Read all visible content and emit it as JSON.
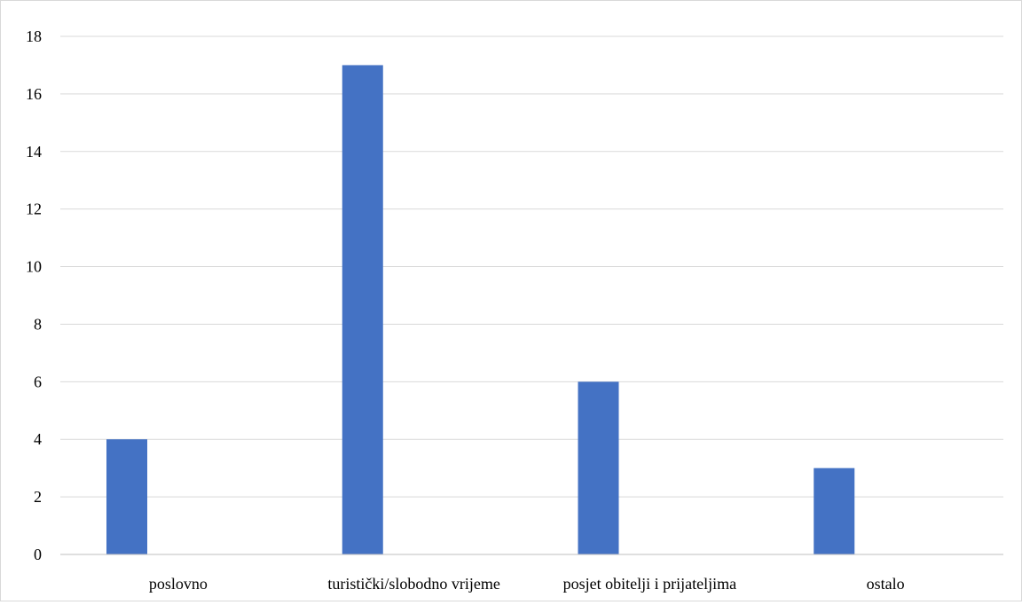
{
  "chart_data": {
    "type": "bar",
    "title": "",
    "xlabel": "",
    "ylabel": "",
    "categories": [
      "poslovno",
      "turistički/slobodno vrijeme",
      "posjet obitelji i prijateljima",
      "ostalo"
    ],
    "values": [
      4,
      17,
      6,
      3
    ],
    "ylim": [
      0,
      18
    ],
    "yticks": [
      0,
      2,
      4,
      6,
      8,
      10,
      12,
      14,
      16,
      18
    ],
    "grid": true,
    "legend": "none",
    "colors": {
      "bar": "#4472C4",
      "grid": "#D9D9D9",
      "axis": "#BFBFBF",
      "border": "#D9D9D9"
    }
  }
}
